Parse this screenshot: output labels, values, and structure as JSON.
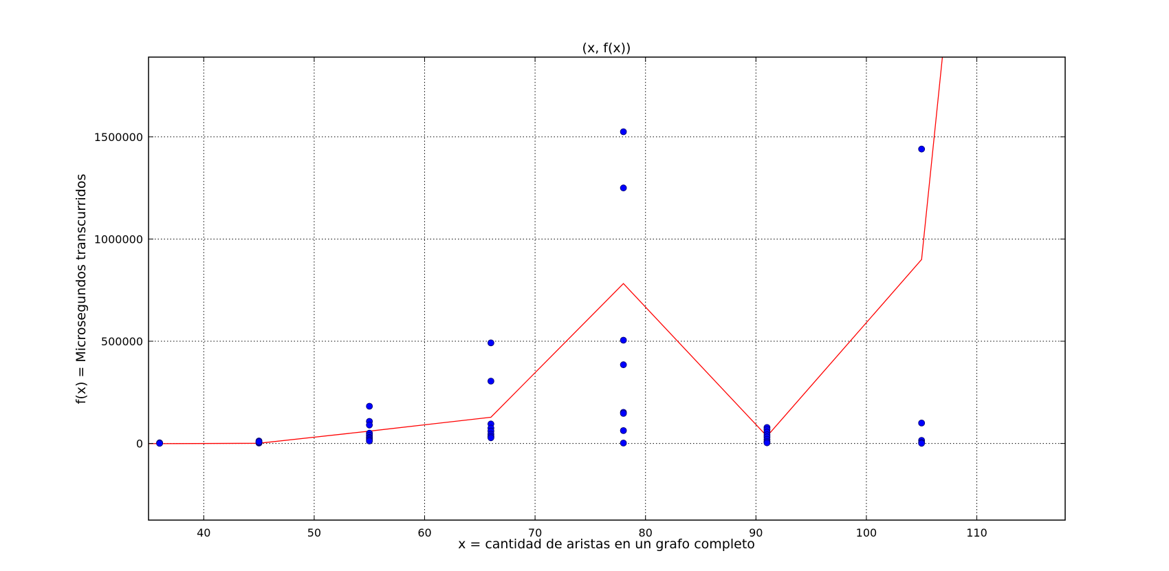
{
  "chart_data": {
    "type": "scatter",
    "title": "(x, f(x))",
    "xlabel": "x = cantidad de aristas en un grafo completo",
    "ylabel": "f(x) = Microsegundos transcurridos",
    "xlim": [
      35,
      118
    ],
    "ylim": [
      -375000,
      1890000
    ],
    "xticks": [
      40,
      50,
      60,
      70,
      80,
      90,
      100,
      110
    ],
    "xtick_labels": [
      "40",
      "50",
      "60",
      "70",
      "80",
      "90",
      "100",
      "110"
    ],
    "yticks": [
      0,
      500000,
      1000000,
      1500000
    ],
    "ytick_labels": [
      "0",
      "500000",
      "1000000",
      "1500000"
    ],
    "grid": true,
    "series": [
      {
        "kind": "scatter",
        "color": "#0000ff",
        "points": [
          [
            36,
            1500
          ],
          [
            36,
            3000
          ],
          [
            36,
            500
          ],
          [
            45,
            2000
          ],
          [
            45,
            5000
          ],
          [
            45,
            12000
          ],
          [
            45,
            8000
          ],
          [
            55,
            182000
          ],
          [
            55,
            108000
          ],
          [
            55,
            90000
          ],
          [
            55,
            50000
          ],
          [
            55,
            40000
          ],
          [
            55,
            30000
          ],
          [
            55,
            25000
          ],
          [
            55,
            18000
          ],
          [
            55,
            12000
          ],
          [
            66,
            492000
          ],
          [
            66,
            305000
          ],
          [
            66,
            95000
          ],
          [
            66,
            75000
          ],
          [
            66,
            60000
          ],
          [
            66,
            45000
          ],
          [
            66,
            35000
          ],
          [
            66,
            28000
          ],
          [
            78,
            1525000
          ],
          [
            78,
            1250000
          ],
          [
            78,
            505000
          ],
          [
            78,
            385000
          ],
          [
            78,
            152000
          ],
          [
            78,
            147000
          ],
          [
            78,
            63000
          ],
          [
            78,
            2000
          ],
          [
            91,
            78000
          ],
          [
            91,
            68000
          ],
          [
            91,
            55000
          ],
          [
            91,
            42000
          ],
          [
            91,
            32000
          ],
          [
            91,
            20000
          ],
          [
            91,
            10000
          ],
          [
            91,
            3000
          ],
          [
            105,
            1440000
          ],
          [
            105,
            100000
          ],
          [
            105,
            15000
          ],
          [
            105,
            5000
          ],
          [
            105,
            1000
          ]
        ]
      },
      {
        "kind": "line",
        "color": "#ff0000",
        "points": [
          [
            35,
            -1000
          ],
          [
            36,
            -1000
          ],
          [
            45,
            1000
          ],
          [
            55,
            60000
          ],
          [
            66,
            128000
          ],
          [
            78,
            782000
          ],
          [
            91,
            35000
          ],
          [
            105,
            900000
          ],
          [
            107,
            1950000
          ]
        ]
      }
    ]
  }
}
